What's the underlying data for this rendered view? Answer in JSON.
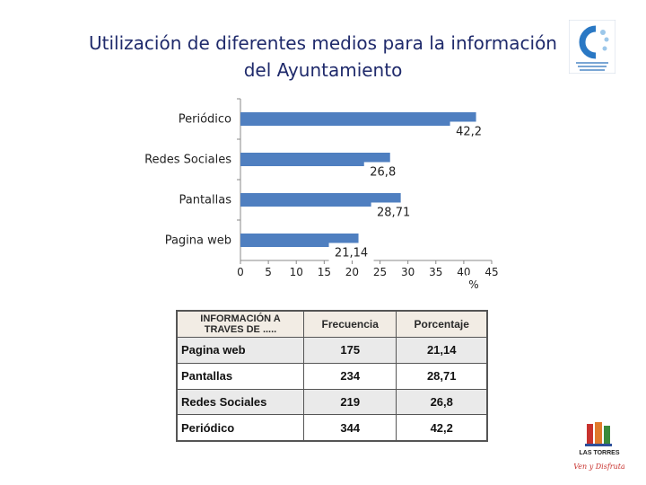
{
  "title_line1": "Utilización de diferentes medios para la información",
  "title_line2": "del Ayuntamiento",
  "chart_data": {
    "type": "bar",
    "orientation": "horizontal",
    "categories": [
      "Periódico",
      "Redes Sociales",
      "Pantallas",
      "Pagina web"
    ],
    "values": [
      42.2,
      26.8,
      28.71,
      21.14
    ],
    "data_labels": [
      "42,2",
      "26,8",
      "28,71",
      "21,14"
    ],
    "xlim": [
      0,
      45
    ],
    "xticks": [
      0,
      5,
      10,
      15,
      20,
      25,
      30,
      35,
      40,
      45
    ],
    "xlabel": "%",
    "bar_color": "#4f7fc0"
  },
  "table": {
    "header": [
      "INFORMACIÓN A TRAVES DE .....",
      "Frecuencia",
      "Porcentaje"
    ],
    "rows": [
      [
        "Pagina web",
        "175",
        "21,14"
      ],
      [
        "Pantallas",
        "234",
        "28,71"
      ],
      [
        "Redes Sociales",
        "219",
        "26,8"
      ],
      [
        "Periódico",
        "344",
        "42,2"
      ]
    ]
  },
  "logos": {
    "top_right": "consorcio-logo",
    "bottom_right_text": "LAS TORRES",
    "bottom_right_slogan": "Ven y Disfruta"
  }
}
